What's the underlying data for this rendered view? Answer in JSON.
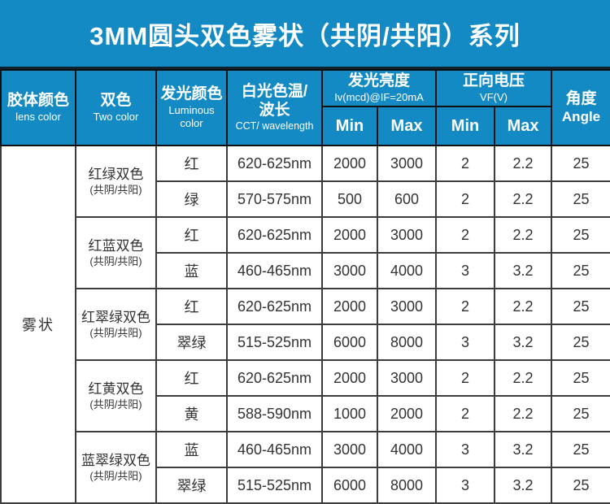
{
  "title": "3MM圆头双色雾状（共阴/共阳）系列",
  "colors": {
    "accent_blue": "#138AC4",
    "header_border": "#101010",
    "body_border": "#3C3C3C",
    "body_text": "#333333"
  },
  "table": {
    "headers": {
      "lens_color": {
        "zh": "胶体颜色",
        "en": "lens color"
      },
      "two_color": {
        "zh": "双色",
        "en": "Two color"
      },
      "luminous_color": {
        "zh": "发光颜色",
        "en": "Luminous\ncolor"
      },
      "cct_wavelength": {
        "zh": "白光色温/\n波长",
        "en": "CCT/ wavelength"
      },
      "luminance": {
        "zh": "发光亮度",
        "en": "Iv(mcd)@IF=20mA",
        "min": "Min",
        "max": "Max"
      },
      "forward_voltage": {
        "zh": "正向电压",
        "en": "VF(V)",
        "min": "Min",
        "max": "Max"
      },
      "angle": {
        "zh": "角度",
        "en": "Angle"
      }
    },
    "lens_color_value": "雾状",
    "groups": [
      {
        "name": "红绿双色",
        "sub": "(共阴/共阳)",
        "rows": [
          {
            "color": "红",
            "wavelength": "620-625nm",
            "lum_min": "2000",
            "lum_max": "3000",
            "vf_min": "2",
            "vf_max": "2.2",
            "angle": "25"
          },
          {
            "color": "绿",
            "wavelength": "570-575nm",
            "lum_min": "500",
            "lum_max": "600",
            "vf_min": "2",
            "vf_max": "2.2",
            "angle": "25"
          }
        ]
      },
      {
        "name": "红蓝双色",
        "sub": "(共阴/共阳)",
        "rows": [
          {
            "color": "红",
            "wavelength": "620-625nm",
            "lum_min": "2000",
            "lum_max": "3000",
            "vf_min": "2",
            "vf_max": "2.2",
            "angle": "25"
          },
          {
            "color": "蓝",
            "wavelength": "460-465nm",
            "lum_min": "3000",
            "lum_max": "4000",
            "vf_min": "3",
            "vf_max": "3.2",
            "angle": "25"
          }
        ]
      },
      {
        "name": "红翠绿双色",
        "sub": "(共阴/共阳)",
        "rows": [
          {
            "color": "红",
            "wavelength": "620-625nm",
            "lum_min": "2000",
            "lum_max": "3000",
            "vf_min": "2",
            "vf_max": "2.2",
            "angle": "25"
          },
          {
            "color": "翠绿",
            "wavelength": "515-525nm",
            "lum_min": "6000",
            "lum_max": "8000",
            "vf_min": "3",
            "vf_max": "3.2",
            "angle": "25"
          }
        ]
      },
      {
        "name": "红黄双色",
        "sub": "(共阴/共阳)",
        "rows": [
          {
            "color": "红",
            "wavelength": "620-625nm",
            "lum_min": "2000",
            "lum_max": "3000",
            "vf_min": "2",
            "vf_max": "2.2",
            "angle": "25"
          },
          {
            "color": "黄",
            "wavelength": "588-590nm",
            "lum_min": "1000",
            "lum_max": "2000",
            "vf_min": "2",
            "vf_max": "2.2",
            "angle": "25"
          }
        ]
      },
      {
        "name": "蓝翠绿双色",
        "sub": "(共阴/共阳)",
        "rows": [
          {
            "color": "蓝",
            "wavelength": "460-465nm",
            "lum_min": "3000",
            "lum_max": "4000",
            "vf_min": "3",
            "vf_max": "3.2",
            "angle": "25"
          },
          {
            "color": "翠绿",
            "wavelength": "515-525nm",
            "lum_min": "6000",
            "lum_max": "8000",
            "vf_min": "3",
            "vf_max": "3.2",
            "angle": "25"
          }
        ]
      }
    ]
  }
}
